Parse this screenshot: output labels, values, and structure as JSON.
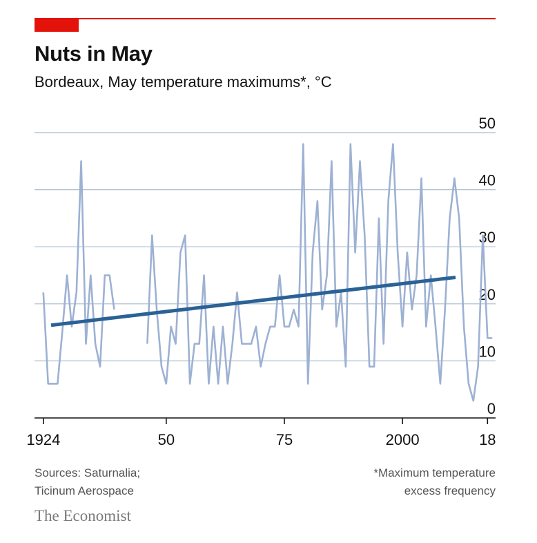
{
  "header": {
    "title": "Nuts in May",
    "subtitle": "Bordeaux, May temperature maximums*, °C"
  },
  "footer": {
    "source_line1": "Sources: Saturnalia;",
    "source_line2": "Ticinum Aerospace",
    "note_line1": "*Maximum temperature",
    "note_line2": "excess frequency",
    "brand": "The Economist"
  },
  "colors": {
    "accent": "#e3120b",
    "series": "#9db1d3",
    "trend": "#2b6296",
    "grid": "#a9bccc",
    "axis": "#121212"
  },
  "chart_data": {
    "type": "line",
    "title": "Nuts in May",
    "subtitle": "Bordeaux, May temperature maximums*, °C",
    "xlabel": "",
    "ylabel": "",
    "xlim": [
      1923,
      2020
    ],
    "ylim": [
      0,
      50
    ],
    "y_ticks": [
      0,
      10,
      20,
      30,
      40,
      50
    ],
    "x_ticks": [
      {
        "value": 1924,
        "label": "1924"
      },
      {
        "value": 1950,
        "label": "50"
      },
      {
        "value": 1975,
        "label": "75"
      },
      {
        "value": 2000,
        "label": "2000"
      },
      {
        "value": 2018,
        "label": "18"
      }
    ],
    "grid": true,
    "y_axis_position": "right",
    "series": [
      {
        "type": "line",
        "segments": [
          {
            "x": [
              1924,
              1925,
              1926,
              1927,
              1928,
              1929,
              1930,
              1931,
              1932,
              1933,
              1934,
              1935,
              1936,
              1937,
              1938,
              1939
            ],
            "y": [
              22,
              6,
              6,
              6,
              15,
              25,
              16,
              22,
              45,
              13,
              25,
              13,
              9,
              25,
              25,
              19
            ]
          },
          {
            "x": [
              1946,
              1947,
              1948,
              1949,
              1950,
              1951,
              1952,
              1953,
              1954,
              1955,
              1956,
              1957,
              1958,
              1959,
              1960,
              1961,
              1962,
              1963,
              1964,
              1965,
              1966,
              1967,
              1968,
              1969,
              1970,
              1971,
              1972,
              1973,
              1974,
              1975,
              1976,
              1977,
              1978,
              1979,
              1980,
              1981,
              1982,
              1983,
              1984,
              1985,
              1986,
              1987,
              1988,
              1989,
              1990,
              1991,
              1992,
              1993,
              1994,
              1995,
              1996,
              1997,
              1998,
              1999,
              2000,
              2001,
              2002,
              2003,
              2004,
              2005,
              2006,
              2007,
              2008,
              2009,
              2010,
              2011,
              2012,
              2013,
              2014,
              2015,
              2016,
              2017,
              2018,
              2019
            ],
            "y": [
              13,
              32,
              19,
              9,
              6,
              16,
              13,
              29,
              32,
              6,
              13,
              13,
              25,
              6,
              16,
              6,
              16,
              6,
              13,
              22,
              13,
              13,
              13,
              16,
              9,
              13,
              16,
              16,
              25,
              16,
              16,
              19,
              16,
              48,
              6,
              29,
              38,
              19,
              25,
              45,
              16,
              22,
              9,
              48,
              29,
              45,
              32,
              9,
              9,
              35,
              13,
              38,
              48,
              29,
              16,
              29,
              19,
              25,
              42,
              16,
              25,
              16,
              6,
              19,
              35,
              42,
              35,
              16,
              6,
              3,
              9,
              32,
              14,
              14
            ]
          }
        ]
      },
      {
        "type": "trend",
        "x": [
          1923,
          2020
        ],
        "y": [
          16,
          25.5
        ]
      }
    ]
  }
}
